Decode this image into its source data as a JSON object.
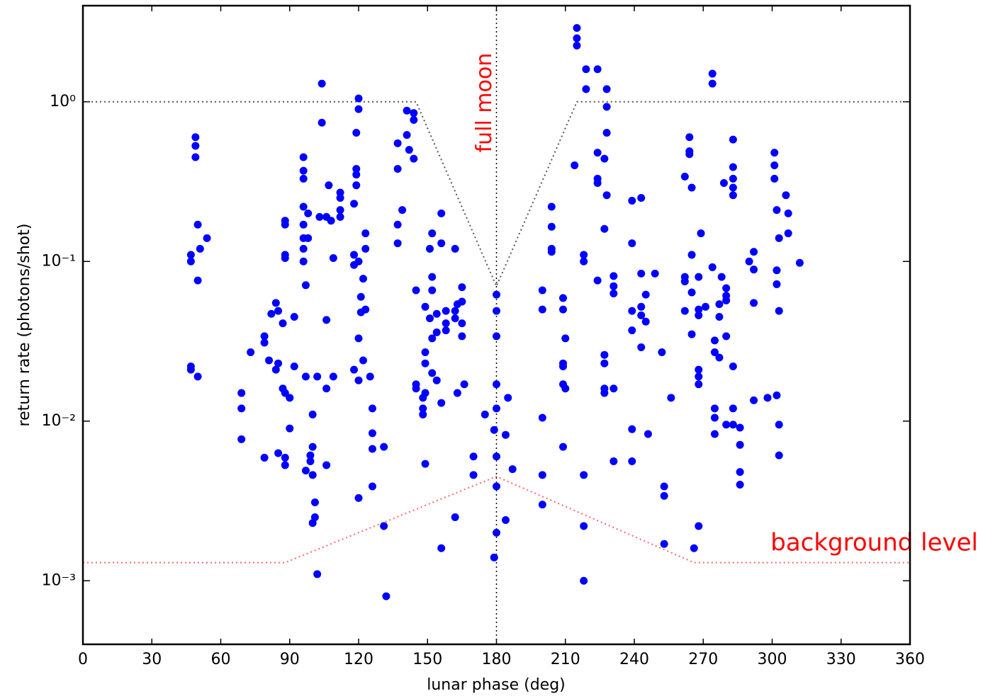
{
  "chart_data": {
    "type": "scatter",
    "xlabel": "lunar phase (deg)",
    "ylabel": "return rate (photons/shot)",
    "color": "#0000ff",
    "log_y": true,
    "xlim": [
      0,
      360
    ],
    "xticks": [
      0,
      30,
      60,
      90,
      120,
      150,
      180,
      210,
      240,
      270,
      300,
      330,
      360
    ],
    "ylim": [
      0.0004,
      4
    ],
    "yticks": [
      {
        "value": 0.001,
        "label": "10⁻³"
      },
      {
        "value": 0.01,
        "label": "10⁻²"
      },
      {
        "value": 0.1,
        "label": "10⁻¹"
      },
      {
        "value": 1,
        "label": "10⁰"
      }
    ],
    "x": [
      47,
      47,
      47,
      47,
      49,
      49,
      49,
      50,
      50,
      50,
      51,
      54,
      69,
      69,
      69,
      73,
      79,
      79,
      79,
      81,
      82,
      84,
      84,
      85,
      85,
      85,
      87,
      87,
      88,
      88,
      88,
      88,
      88,
      88,
      88,
      90,
      90,
      92,
      92,
      96,
      96,
      96,
      96,
      96,
      96,
      96,
      96,
      97,
      97,
      97,
      98,
      98,
      99,
      99,
      100,
      100,
      100,
      100,
      101,
      101,
      102,
      102,
      103,
      104,
      104,
      106,
      106,
      106,
      106,
      107,
      108,
      109,
      109,
      112,
      112,
      112,
      112,
      118,
      118,
      118,
      118,
      119,
      119,
      119,
      119,
      120,
      120,
      120,
      120,
      120,
      120,
      121,
      121,
      122,
      122,
      123,
      123,
      123,
      125,
      126,
      126,
      126,
      126,
      131,
      131,
      132,
      137,
      137,
      137,
      137,
      139,
      141,
      141,
      142,
      144,
      144,
      144,
      145,
      145,
      145,
      148,
      148,
      148,
      149,
      149,
      149,
      149,
      149,
      151,
      151,
      152,
      152,
      152,
      152,
      152,
      154,
      154,
      154,
      156,
      156,
      156,
      156,
      158,
      158,
      158,
      162,
      162,
      162,
      162,
      163,
      163,
      165,
      165,
      165,
      165,
      166,
      170,
      170,
      175,
      179,
      179,
      180,
      180,
      180,
      180,
      180,
      180,
      180,
      180,
      184,
      184,
      185,
      187,
      200,
      200,
      200,
      200,
      200,
      204,
      204,
      204,
      204,
      209,
      209,
      209,
      209,
      209,
      209,
      210,
      210,
      214,
      215,
      215,
      215,
      218,
      218,
      218,
      218,
      218,
      219,
      219,
      224,
      224,
      224,
      224,
      224,
      227,
      227,
      227,
      227,
      227,
      227,
      228,
      228,
      228,
      228,
      231,
      231,
      231,
      231,
      231,
      239,
      239,
      239,
      239,
      239,
      239,
      243,
      243,
      243,
      243,
      243,
      245,
      245,
      246,
      249,
      252,
      253,
      253,
      253,
      256,
      262,
      262,
      262,
      262,
      264,
      264,
      264,
      265,
      265,
      265,
      265,
      266,
      268,
      268,
      268,
      268,
      268,
      268,
      268,
      269,
      271,
      274,
      274,
      274,
      275,
      275,
      275,
      275,
      275,
      277,
      277,
      277,
      278,
      279,
      280,
      280,
      280,
      280,
      280,
      283,
      283,
      283,
      283,
      283,
      283,
      283,
      283,
      286,
      286,
      286,
      286,
      290,
      292,
      292,
      292,
      292,
      298,
      301,
      301,
      301,
      302,
      302,
      302,
      302,
      303,
      303,
      303,
      303,
      306,
      307,
      307,
      312
    ],
    "values": [
      0.11,
      0.1,
      0.022,
      0.021,
      0.6,
      0.53,
      0.45,
      0.17,
      0.076,
      0.019,
      0.12,
      0.14,
      0.015,
      0.012,
      0.0077,
      0.027,
      0.034,
      0.031,
      0.0059,
      0.024,
      0.047,
      0.055,
      0.021,
      0.023,
      0.049,
      0.0063,
      0.016,
      0.041,
      0.18,
      0.17,
      0.11,
      0.105,
      0.0059,
      0.0053,
      0.015,
      0.014,
      0.009,
      0.045,
      0.022,
      0.45,
      0.37,
      0.33,
      0.22,
      0.17,
      0.14,
      0.12,
      0.1,
      0.071,
      0.019,
      0.0049,
      0.2,
      0.14,
      0.0061,
      0.0056,
      0.011,
      0.0069,
      0.0046,
      0.0023,
      0.0025,
      0.0031,
      0.019,
      0.0011,
      0.19,
      1.3,
      0.74,
      0.19,
      0.043,
      0.016,
      0.0053,
      0.3,
      0.18,
      0.105,
      0.019,
      0.27,
      0.25,
      0.21,
      0.19,
      0.23,
      0.095,
      0.11,
      0.021,
      0.38,
      0.35,
      0.3,
      0.64,
      1.05,
      0.9,
      0.1,
      0.0033,
      0.033,
      0.018,
      0.06,
      0.048,
      0.078,
      0.024,
      0.15,
      0.12,
      0.05,
      0.019,
      0.012,
      0.0084,
      0.0067,
      0.0039,
      0.0069,
      0.0022,
      0.0008,
      0.13,
      0.17,
      0.38,
      0.55,
      0.21,
      0.88,
      0.62,
      0.5,
      0.85,
      0.77,
      0.44,
      0.066,
      0.017,
      0.016,
      0.011,
      0.012,
      0.014,
      0.027,
      0.023,
      0.015,
      0.0054,
      0.052,
      0.12,
      0.044,
      0.15,
      0.08,
      0.066,
      0.033,
      0.02,
      0.047,
      0.036,
      0.018,
      0.2,
      0.13,
      0.0016,
      0.013,
      0.041,
      0.037,
      0.049,
      0.12,
      0.049,
      0.044,
      0.0025,
      0.015,
      0.054,
      0.069,
      0.056,
      0.041,
      0.034,
      0.017,
      0.006,
      0.0046,
      0.011,
      0.0088,
      0.0014,
      0.062,
      0.049,
      0.034,
      0.017,
      0.012,
      0.006,
      0.0039,
      0.002,
      0.0082,
      0.0024,
      0.014,
      0.005,
      0.066,
      0.05,
      0.0105,
      0.0046,
      0.003,
      0.22,
      0.165,
      0.12,
      0.115,
      0.059,
      0.05,
      0.023,
      0.022,
      0.017,
      0.0069,
      0.033,
      0.016,
      0.4,
      2.9,
      2.5,
      2.25,
      0.11,
      0.1,
      0.0046,
      0.0022,
      0.001,
      1.6,
      1.2,
      1.6,
      0.48,
      0.33,
      0.31,
      0.076,
      0.026,
      0.023,
      0.016,
      0.015,
      0.44,
      0.16,
      1.2,
      0.93,
      0.64,
      0.26,
      0.081,
      0.07,
      0.063,
      0.016,
      0.0056,
      0.24,
      0.13,
      0.049,
      0.037,
      0.0089,
      0.0056,
      0.25,
      0.084,
      0.052,
      0.046,
      0.029,
      0.062,
      0.042,
      0.0083,
      0.084,
      0.027,
      0.0039,
      0.0034,
      0.0017,
      0.014,
      0.34,
      0.08,
      0.075,
      0.049,
      0.6,
      0.49,
      0.47,
      0.29,
      0.11,
      0.064,
      0.035,
      0.0016,
      0.08,
      0.05,
      0.046,
      0.019,
      0.017,
      0.0022,
      0.021,
      0.15,
      0.052,
      1.5,
      1.3,
      0.092,
      0.032,
      0.027,
      0.012,
      0.0105,
      0.0083,
      0.054,
      0.045,
      0.025,
      0.08,
      0.31,
      0.068,
      0.061,
      0.057,
      0.034,
      0.0095,
      0.58,
      0.39,
      0.33,
      0.29,
      0.26,
      0.022,
      0.012,
      0.0095,
      0.0091,
      0.0071,
      0.0048,
      0.004,
      0.1,
      0.115,
      0.089,
      0.055,
      0.0135,
      0.014,
      0.48,
      0.4,
      0.33,
      0.21,
      0.088,
      0.072,
      0.0145,
      0.14,
      0.049,
      0.0095,
      0.0061,
      0.26,
      0.2,
      0.15,
      0.098
    ],
    "lines": [
      {
        "color": "#555555",
        "x": [
          0,
          145,
          180,
          215,
          360
        ],
        "values": [
          1,
          1,
          0.07,
          1,
          1
        ]
      },
      {
        "color": "#ff6666",
        "x": [
          0,
          88,
          180,
          266,
          360
        ],
        "values": [
          0.0013,
          0.0013,
          0.0045,
          0.0013,
          0.0013
        ]
      }
    ],
    "vline": {
      "x": 180,
      "label": "full moon"
    },
    "annotation": "background level"
  }
}
